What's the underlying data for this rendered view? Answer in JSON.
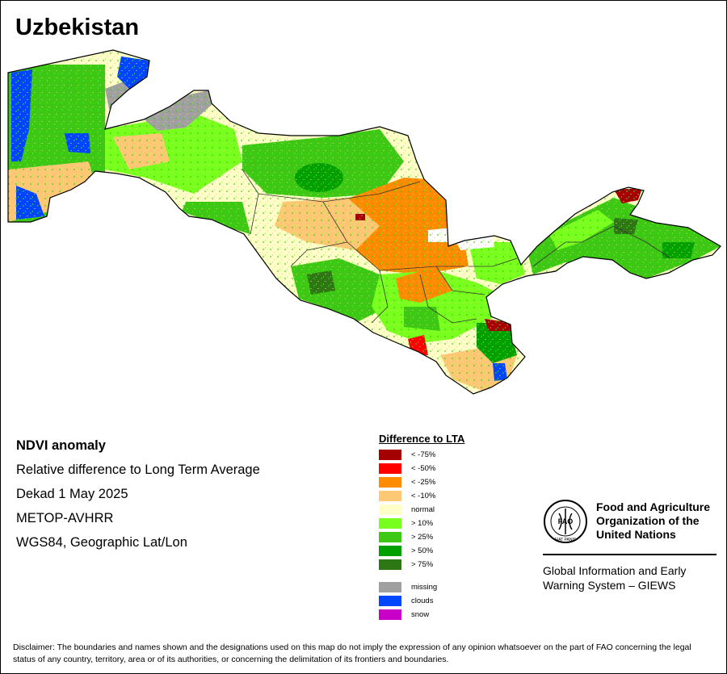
{
  "title": "Uzbekistan",
  "info": {
    "heading": "NDVI anomaly",
    "line1": "Relative difference to Long Term Average",
    "line2": "Dekad 1 May 2025",
    "line3": "METOP-AVHRR",
    "line4": "WGS84, Geographic Lat/Lon"
  },
  "legend": {
    "title": "Difference to LTA",
    "items": [
      {
        "label": "< -75%",
        "color": "#a50000"
      },
      {
        "label": "< -50%",
        "color": "#ff0000"
      },
      {
        "label": "< -25%",
        "color": "#ff8c00"
      },
      {
        "label": "< -10%",
        "color": "#ffc875"
      },
      {
        "label": "normal",
        "color": "#ffffc8"
      },
      {
        "label": "> 10%",
        "color": "#78ff1e"
      },
      {
        "label": "> 25%",
        "color": "#3cc814"
      },
      {
        "label": "> 50%",
        "color": "#00a000"
      },
      {
        "label": "> 75%",
        "color": "#2d7814"
      }
    ],
    "extra": [
      {
        "label": "missing",
        "color": "#a0a0a0"
      },
      {
        "label": "clouds",
        "color": "#0046ff"
      },
      {
        "label": "snow",
        "color": "#c800c8"
      }
    ]
  },
  "organization": {
    "name_line1": "Food and Agriculture",
    "name_line2": "Organization of the",
    "name_line3": "United Nations",
    "logo_letters": "FAO",
    "logo_motto": "FIAT PANIS",
    "system_line1": "Global Information and Early",
    "system_line2": "Warning System – GIEWS"
  },
  "disclaimer": "Disclaimer: The boundaries and names shown and the designations used on this map do not imply the expression of any opinion whatsoever on the part of FAO concerning the legal status of any country, territory, area or of its authorities, or concerning the delimitation of its frontiers and boundaries."
}
